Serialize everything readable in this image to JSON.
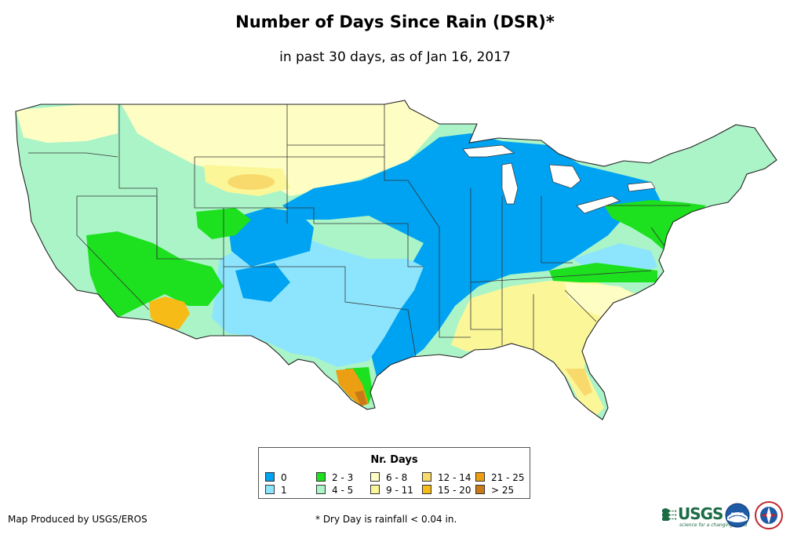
{
  "header": {
    "title": "Number of Days Since Rain (DSR)*",
    "subtitle": "in past 30 days, as of Jan 16, 2017"
  },
  "legend": {
    "title": "Nr. Days",
    "items": [
      {
        "label": "0",
        "color": "#00a2f2"
      },
      {
        "label": "1",
        "color": "#8de5fd"
      },
      {
        "label": "2 - 3",
        "color": "#1de01f"
      },
      {
        "label": "4 - 5",
        "color": "#aaf4c8"
      },
      {
        "label": "6 - 8",
        "color": "#fefec4"
      },
      {
        "label": "9 - 11",
        "color": "#fbf799"
      },
      {
        "label": "12 - 14",
        "color": "#f8da6c"
      },
      {
        "label": "15 - 20",
        "color": "#f6bb16"
      },
      {
        "label": "21 - 25",
        "color": "#ec9f12"
      },
      {
        "label": "> 25",
        "color": "#c87a18"
      }
    ]
  },
  "footer": {
    "credit": "Map Produced by USGS/EROS",
    "footnote": "* Dry Day is rainfall < 0.04 in.",
    "usgs_logo_text": "USGS",
    "usgs_tagline": "science for a changing world",
    "noaa_logo_text": "noaa"
  },
  "map_layers": {
    "region": "Contiguous United States",
    "icons": [
      "usgs-logo-icon",
      "noaa-logo-icon",
      "nws-logo-icon"
    ]
  }
}
